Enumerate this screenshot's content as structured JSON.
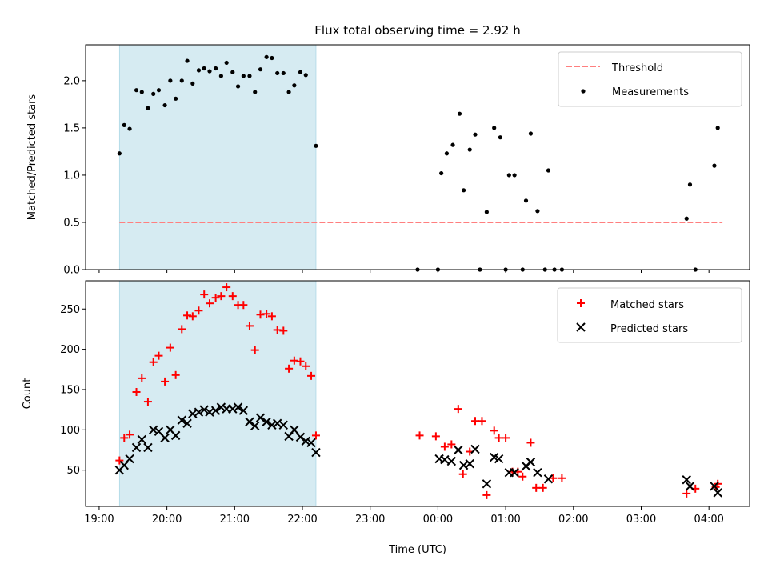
{
  "chart_data": [
    {
      "type": "scatter",
      "title": "Flux total observing time = 2.92 h",
      "xlabel": "",
      "ylabel": "Matched/Predicted stars",
      "xlim_hours": [
        18.8,
        28.6
      ],
      "ylim": [
        0,
        2.38
      ],
      "yticks": [
        0.0,
        0.5,
        1.0,
        1.5,
        2.0
      ],
      "ytick_labels": [
        "0.0",
        "0.5",
        "1.0",
        "1.5",
        "2.0"
      ],
      "shaded_interval_hours": [
        19.3,
        22.2
      ],
      "shade_color": "#add8e6",
      "legend_position": "upper right",
      "legend": [
        {
          "label": "Threshold",
          "style": "dashed-line",
          "color": "#ff7f7f"
        },
        {
          "label": "Measurements",
          "style": "dot",
          "color": "#000000"
        }
      ],
      "threshold": {
        "name": "Threshold",
        "y": 0.5,
        "x_range_hours": [
          19.3,
          28.2
        ],
        "color": "#ff7f7f"
      },
      "series": [
        {
          "name": "Measurements",
          "color": "#000000",
          "x_hours": [
            19.3,
            19.37,
            19.45,
            19.55,
            19.63,
            19.72,
            19.8,
            19.88,
            19.97,
            20.05,
            20.13,
            20.22,
            20.3,
            20.38,
            20.47,
            20.55,
            20.63,
            20.72,
            20.8,
            20.88,
            20.97,
            21.05,
            21.13,
            21.22,
            21.3,
            21.38,
            21.47,
            21.55,
            21.63,
            21.72,
            21.8,
            21.88,
            21.97,
            22.05,
            22.2,
            23.7,
            24.0,
            24.05,
            24.13,
            24.22,
            24.32,
            24.38,
            24.47,
            24.55,
            24.62,
            24.72,
            24.83,
            24.92,
            25.0,
            25.05,
            25.13,
            25.25,
            25.3,
            25.37,
            25.47,
            25.58,
            25.63,
            25.72,
            25.83,
            27.67,
            27.72,
            27.8,
            28.08,
            28.13
          ],
          "y": [
            1.23,
            1.53,
            1.49,
            1.9,
            1.88,
            1.71,
            1.86,
            1.9,
            1.74,
            2.0,
            1.81,
            2.0,
            2.21,
            1.97,
            2.11,
            2.13,
            2.1,
            2.13,
            2.05,
            2.19,
            2.09,
            1.94,
            2.05,
            2.05,
            1.88,
            2.12,
            2.25,
            2.24,
            2.08,
            2.08,
            1.88,
            1.95,
            2.09,
            2.06,
            1.31,
            0.0,
            0.0,
            1.02,
            1.23,
            1.32,
            1.65,
            0.84,
            1.27,
            1.43,
            0.0,
            0.61,
            1.5,
            1.4,
            0.0,
            1.0,
            1.0,
            0.0,
            0.73,
            1.44,
            0.62,
            0.0,
            1.05,
            0.0,
            0.0,
            0.54,
            0.9,
            0.0,
            1.1,
            1.5
          ]
        }
      ]
    },
    {
      "type": "scatter",
      "title": "",
      "xlabel": "Time (UTC)",
      "ylabel": "Count",
      "xlim_hours": [
        18.8,
        28.6
      ],
      "ylim": [
        5,
        285
      ],
      "yticks": [
        50,
        100,
        150,
        200,
        250
      ],
      "ytick_labels": [
        "50",
        "100",
        "150",
        "200",
        "250"
      ],
      "xticks_hours": [
        19,
        20,
        21,
        22,
        23,
        24,
        25,
        26,
        27,
        28
      ],
      "xtick_labels": [
        "19:00",
        "20:00",
        "21:00",
        "22:00",
        "23:00",
        "00:00",
        "01:00",
        "02:00",
        "03:00",
        "04:00"
      ],
      "shaded_interval_hours": [
        19.3,
        22.2
      ],
      "shade_color": "#add8e6",
      "legend_position": "upper right",
      "legend": [
        {
          "label": "Matched stars",
          "style": "plus",
          "color": "#ff0000"
        },
        {
          "label": "Predicted stars",
          "style": "cross",
          "color": "#000000"
        }
      ],
      "series": [
        {
          "name": "Matched stars",
          "marker": "plus",
          "color": "#ff0000",
          "x_hours": [
            19.3,
            19.37,
            19.45,
            19.55,
            19.63,
            19.72,
            19.8,
            19.88,
            19.97,
            20.05,
            20.13,
            20.22,
            20.3,
            20.38,
            20.47,
            20.55,
            20.63,
            20.72,
            20.8,
            20.88,
            20.97,
            21.05,
            21.13,
            21.22,
            21.3,
            21.38,
            21.47,
            21.55,
            21.63,
            21.72,
            21.8,
            21.88,
            21.97,
            22.05,
            22.13,
            22.2,
            23.73,
            23.97,
            24.1,
            24.2,
            24.3,
            24.37,
            24.47,
            24.55,
            24.65,
            24.72,
            24.83,
            24.9,
            25.0,
            25.1,
            25.18,
            25.25,
            25.37,
            25.45,
            25.55,
            25.7,
            25.83,
            27.67,
            27.8,
            28.1,
            28.13
          ],
          "y": [
            62,
            90,
            94,
            147,
            164,
            135,
            184,
            192,
            160,
            202,
            168,
            225,
            242,
            241,
            248,
            268,
            257,
            264,
            266,
            277,
            266,
            255,
            255,
            229,
            199,
            243,
            244,
            241,
            224,
            223,
            176,
            186,
            185,
            179,
            167,
            93,
            93,
            92,
            79,
            82,
            126,
            45,
            73,
            111,
            111,
            19,
            99,
            90,
            90,
            48,
            48,
            42,
            84,
            28,
            28,
            40,
            40,
            21,
            27,
            29,
            33
          ]
        },
        {
          "name": "Predicted stars",
          "marker": "cross",
          "color": "#000000",
          "x_hours": [
            19.3,
            19.37,
            19.45,
            19.55,
            19.63,
            19.72,
            19.8,
            19.88,
            19.97,
            20.05,
            20.13,
            20.22,
            20.3,
            20.38,
            20.47,
            20.55,
            20.63,
            20.72,
            20.8,
            20.88,
            20.97,
            21.05,
            21.13,
            21.22,
            21.3,
            21.38,
            21.47,
            21.55,
            21.63,
            21.72,
            21.8,
            21.88,
            21.97,
            22.05,
            22.13,
            22.2,
            24.02,
            24.1,
            24.2,
            24.3,
            24.38,
            24.47,
            24.55,
            24.72,
            24.83,
            24.9,
            25.05,
            25.13,
            25.3,
            25.37,
            25.47,
            25.63,
            27.67,
            27.72,
            28.08,
            28.13
          ],
          "y": [
            50,
            56,
            64,
            78,
            88,
            78,
            100,
            98,
            90,
            100,
            93,
            112,
            108,
            120,
            122,
            125,
            122,
            124,
            128,
            126,
            126,
            128,
            124,
            110,
            105,
            115,
            110,
            106,
            108,
            106,
            92,
            100,
            91,
            86,
            84,
            72,
            64,
            63,
            61,
            75,
            56,
            58,
            76,
            33,
            66,
            64,
            47,
            47,
            55,
            60,
            47,
            39,
            38,
            30,
            30,
            22
          ]
        }
      ]
    }
  ]
}
